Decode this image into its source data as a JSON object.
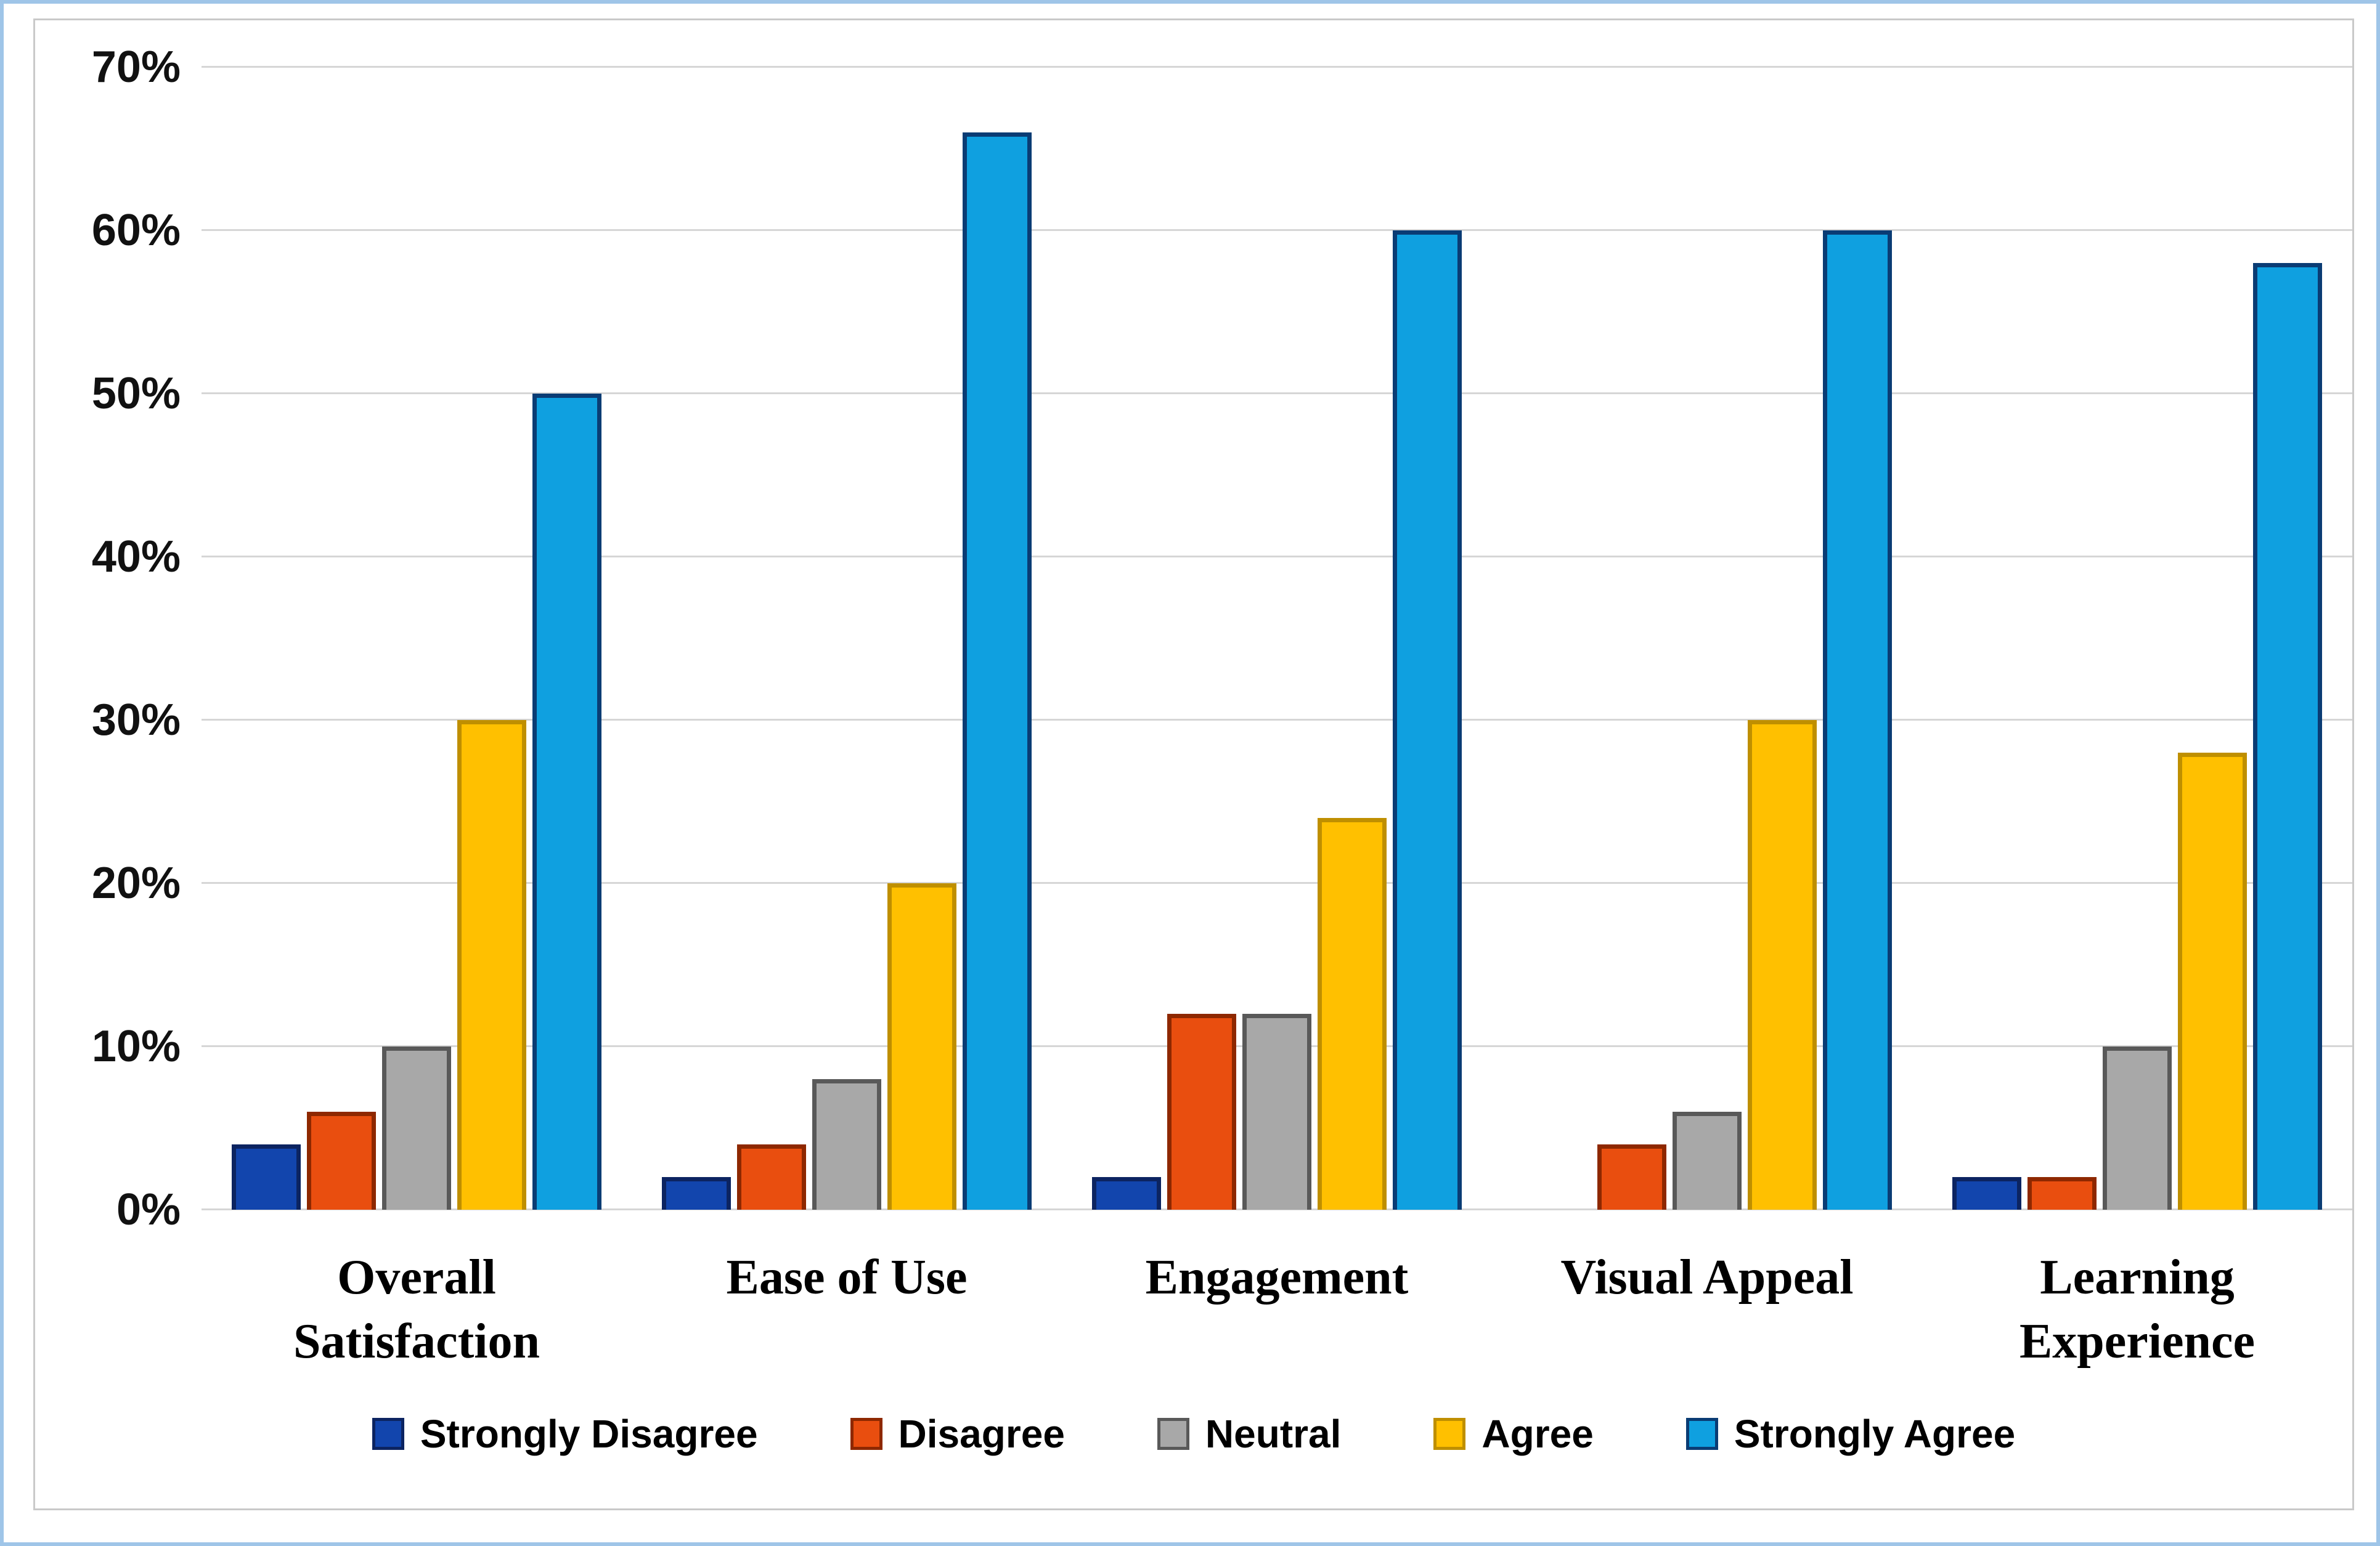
{
  "figure": {
    "background": "#ffffff",
    "outer_border_color": "#9fc5e8",
    "frame_border_color": "#c9c9c9",
    "gridline_color": "#d6d6d6"
  },
  "chart_data": {
    "type": "bar",
    "title": "",
    "xlabel": "",
    "ylabel": "",
    "categories": [
      "Overall Satisfaction",
      "Ease of Use",
      "Engagement",
      "Visual Appeal",
      "Learning Experience"
    ],
    "series": [
      {
        "name": "Strongly Disagree",
        "color": "#1245AD",
        "border_color": "#0C2461",
        "values": [
          4,
          2,
          2,
          0,
          2
        ]
      },
      {
        "name": "Disagree",
        "color": "#E94E0F",
        "border_color": "#8E2800",
        "values": [
          6,
          4,
          12,
          4,
          2
        ]
      },
      {
        "name": "Neutral",
        "color": "#A8A8A8",
        "border_color": "#595959",
        "values": [
          10,
          8,
          12,
          6,
          10
        ]
      },
      {
        "name": "Agree",
        "color": "#FFC000",
        "border_color": "#BF8F00",
        "values": [
          30,
          20,
          24,
          30,
          28
        ]
      },
      {
        "name": "Strongly Agree",
        "color": "#0FA0E0",
        "border_color": "#0A3C74",
        "values": [
          50,
          66,
          60,
          60,
          58
        ]
      }
    ],
    "ylim": [
      0,
      70
    ],
    "ytick_step": 10,
    "ytick_labels": [
      "0%",
      "10%",
      "20%",
      "30%",
      "40%",
      "50%",
      "60%",
      "70%"
    ],
    "grid": true,
    "legend_position": "bottom"
  }
}
